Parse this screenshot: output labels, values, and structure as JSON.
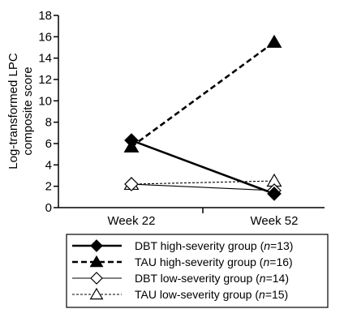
{
  "chart_data": {
    "type": "line",
    "title": "",
    "ylabel_line1": "Log-transformed LPC",
    "ylabel_line2": "composite score",
    "xlabel": "",
    "categories": [
      "Week 22",
      "Week 52"
    ],
    "ylim": [
      0,
      18
    ],
    "yticks": [
      0,
      2,
      4,
      6,
      8,
      10,
      12,
      14,
      16,
      18
    ],
    "ytick_labels": [
      "0",
      "2",
      "4",
      "6",
      "8",
      "10",
      "12",
      "14",
      "16",
      "18"
    ],
    "grid": false,
    "legend_position": "bottom",
    "series": [
      {
        "name_main": "DBT high-severity group (",
        "name_n": "n",
        "name_rest": "=13)",
        "values": [
          6.3,
          1.3
        ],
        "marker": "diamond",
        "filled": true,
        "dashed": false,
        "thick": true
      },
      {
        "name_main": "TAU high-severity group (",
        "name_n": "n",
        "name_rest": "=16)",
        "values": [
          5.7,
          15.5
        ],
        "marker": "triangle",
        "filled": true,
        "dashed": true,
        "thick": true
      },
      {
        "name_main": "DBT low-severity group (",
        "name_n": "n",
        "name_rest": "=14)",
        "values": [
          2.2,
          1.6
        ],
        "marker": "diamond",
        "filled": false,
        "dashed": false,
        "thick": false
      },
      {
        "name_main": "TAU low-severity group (",
        "name_n": "n",
        "name_rest": "=15)",
        "values": [
          2.2,
          2.5
        ],
        "marker": "triangle",
        "filled": false,
        "dashed": true,
        "thick": false
      }
    ]
  }
}
